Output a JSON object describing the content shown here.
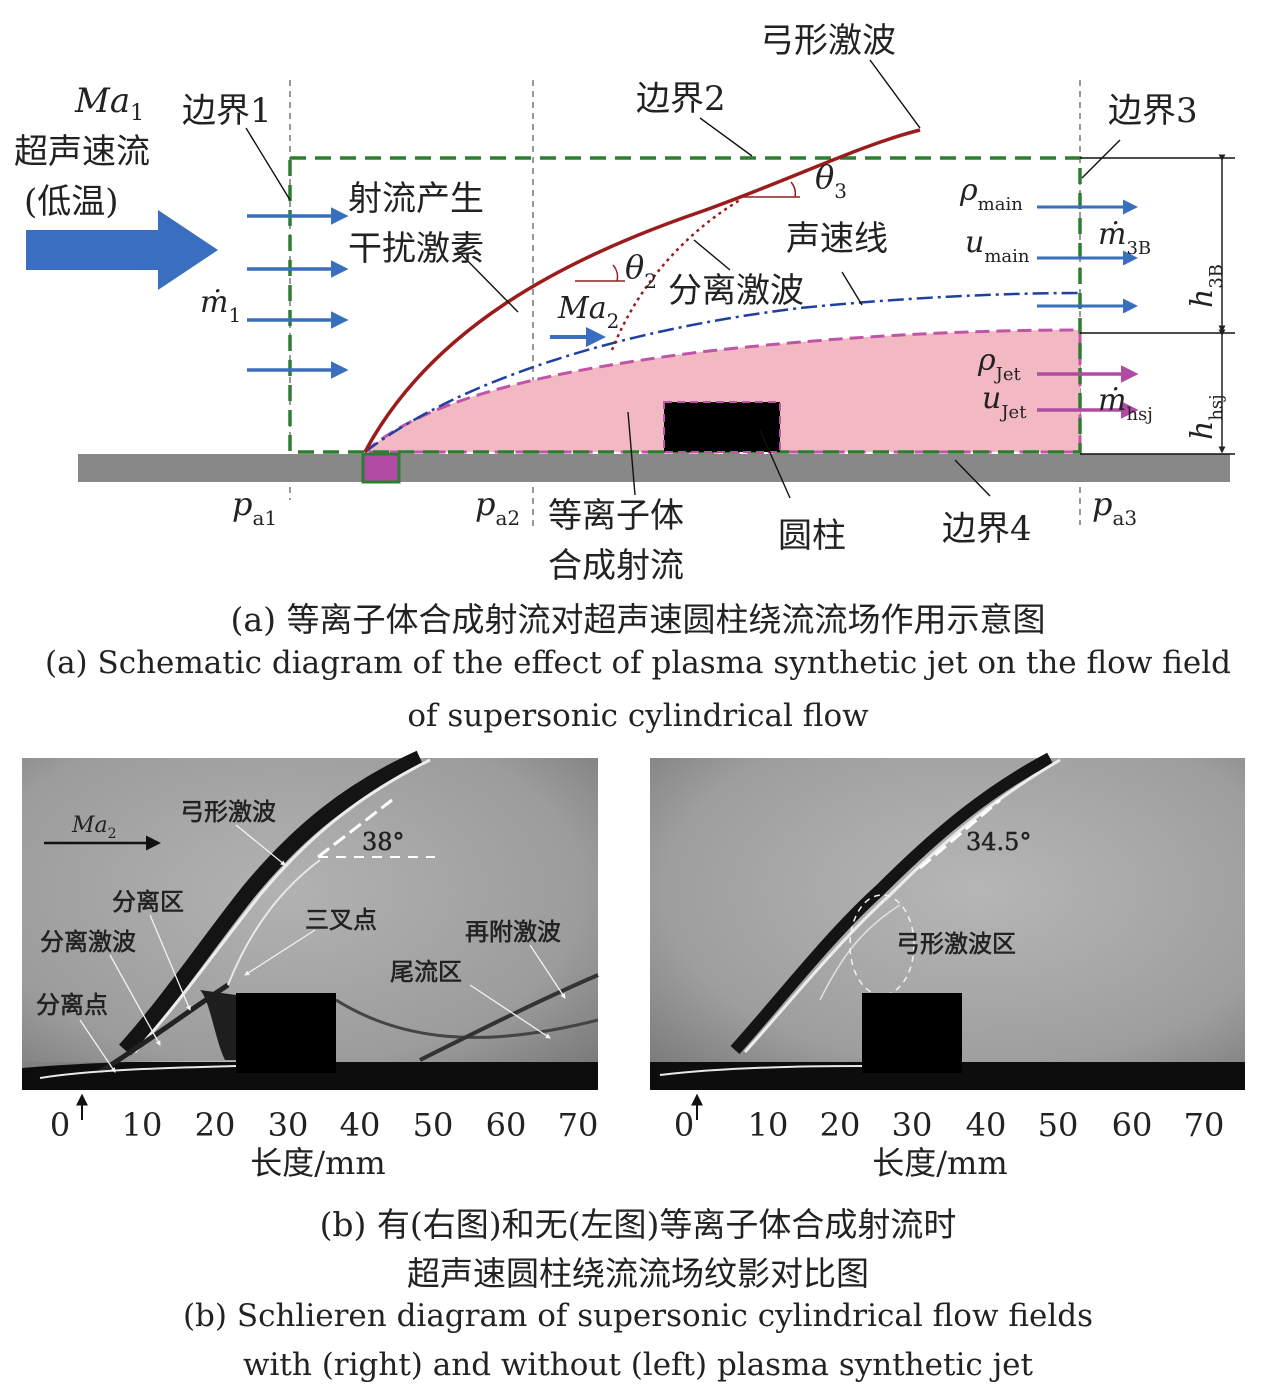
{
  "panel_a": {
    "inflow": {
      "mach": "Ma",
      "mach_sub": "1",
      "line1": "超声速流",
      "line2": "(低温)"
    },
    "mdot1": {
      "sym": "ṁ",
      "sub": "1"
    },
    "boundary1": "边界1",
    "boundary2": "边界2",
    "boundary3": "边界3",
    "boundary4": "边界4",
    "bow_shock": "弓形激波",
    "jet_disturb_line1": "射流产生",
    "jet_disturb_line2": "干扰激素",
    "theta2": {
      "sym": "θ",
      "sub": "2"
    },
    "theta3": {
      "sym": "θ",
      "sub": "3"
    },
    "separation_shock": "分离激波",
    "sonic_line": "声速线",
    "ma2": {
      "sym": "Ma",
      "sub": "2"
    },
    "rho_main": {
      "sym": "ρ",
      "sub": "main"
    },
    "u_main": {
      "sym": "u",
      "sub": "main"
    },
    "mdot_3B": {
      "sym": "ṁ",
      "sub": "3B"
    },
    "rho_jet": {
      "sym": "ρ",
      "sub": "Jet"
    },
    "u_jet": {
      "sym": "u",
      "sub": "Jet"
    },
    "mdot_hsj": {
      "sym": "ṁ",
      "sub": "hsj"
    },
    "h_3B": {
      "sym": "h",
      "sub": "3B"
    },
    "h_hsj": {
      "sym": "h",
      "sub": "hsj"
    },
    "pa1": {
      "sym": "p",
      "sub": "a1"
    },
    "pa2": {
      "sym": "p",
      "sub": "a2"
    },
    "pa3": {
      "sym": "p",
      "sub": "a3"
    },
    "plasma_jet_line1": "等离子体",
    "plasma_jet_line2": "合成射流",
    "cylinder": "圆柱"
  },
  "caption_a": {
    "cn": "(a) 等离子体合成射流对超声速圆柱绕流流场作用示意图",
    "en_line1": "(a) Schematic diagram of the effect of plasma synthetic jet on the flow field",
    "en_line2": "of supersonic cylindrical flow"
  },
  "panel_b": {
    "left": {
      "ma2": {
        "sym": "Ma",
        "sub": "2"
      },
      "bow_shock": "弓形激波",
      "angle": "38°",
      "separation_region": "分离区",
      "separation_shock": "分离激波",
      "separation_point": "分离点",
      "triple_point": "三叉点",
      "reattach_shock": "再附激波",
      "wake_region": "尾流区"
    },
    "right": {
      "angle": "34.5°",
      "bow_shock_region": "弓形激波区"
    },
    "axis": {
      "ticks": [
        "0",
        "10",
        "20",
        "30",
        "40",
        "50",
        "60",
        "70"
      ],
      "xlabel": "长度/mm"
    }
  },
  "caption_b": {
    "cn_line1": "(b) 有(右图)和无(左图)等离子体合成射流时",
    "cn_line2": "超声速圆柱绕流流场纹影对比图",
    "en_line1": "(b) Schlieren diagram of  supersonic cylindrical flow fields",
    "en_line2": "with (right) and without (left) plasma synthetic jet"
  },
  "colors": {
    "shock": "#9b1c1c",
    "boundary": "#2e7d32",
    "flow_arrow": "#3a6fbf",
    "jet_fill": "#f3b9c3",
    "jet_edge": "#c055a8",
    "jet_arrow": "#b04aa2",
    "sonic_line": "#2040a0",
    "wall": "#888888"
  }
}
